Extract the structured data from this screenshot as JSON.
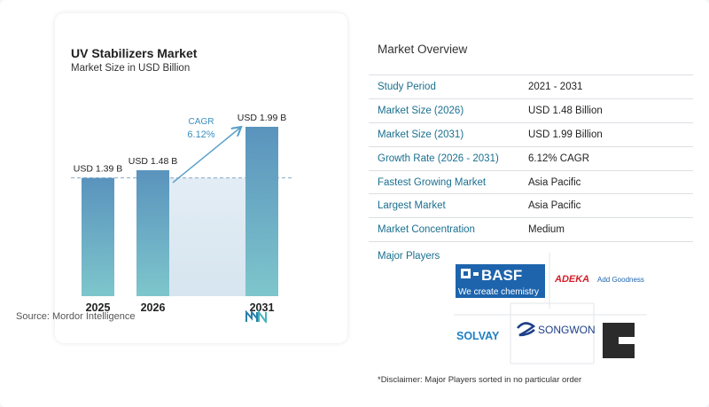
{
  "chart_data": {
    "type": "bar",
    "title": "UV Stabilizers Market",
    "subtitle": "Market Size in USD Billion",
    "categories": [
      "2025",
      "2026",
      "2031"
    ],
    "values": [
      1.39,
      1.48,
      1.99
    ],
    "value_labels": [
      "USD 1.39 B",
      "USD 1.48 B",
      "USD 1.99 B"
    ],
    "cagr_label": "CAGR",
    "cagr_value": "6.12%",
    "ylim": [
      0,
      1.99
    ],
    "grid": false
  },
  "source": "Source:  Mordor Intelligence",
  "overview": {
    "title": "Market Overview",
    "rows": [
      {
        "key": "Study Period",
        "value": "2021 - 2031"
      },
      {
        "key": "Market Size (2026)",
        "value": "USD 1.48 Billion"
      },
      {
        "key": "Market Size (2031)",
        "value": "USD 1.99 Billion"
      },
      {
        "key": "Growth Rate (2026 - 2031)",
        "value": "6.12% CAGR"
      },
      {
        "key": "Fastest Growing Market",
        "value": "Asia Pacific"
      },
      {
        "key": "Largest Market",
        "value": "Asia Pacific"
      },
      {
        "key": "Market Concentration",
        "value": "Medium"
      }
    ]
  },
  "players": {
    "title": "Major Players",
    "basf_name": "BASF",
    "basf_tagline": "We create chemistry",
    "adeka_name": "ADEKA",
    "adeka_tagline": "Add Goodness",
    "solvay_name": "SOLVAY",
    "songwon_name": "SONGWON"
  },
  "disclaimer": "*Disclaimer: Major Players sorted in no particular order",
  "colors": {
    "bar_top": "#5a93bd",
    "bar_bottom": "#7ec6cc",
    "background_band": "#dde9f2",
    "accent": "#1a6f8f"
  }
}
